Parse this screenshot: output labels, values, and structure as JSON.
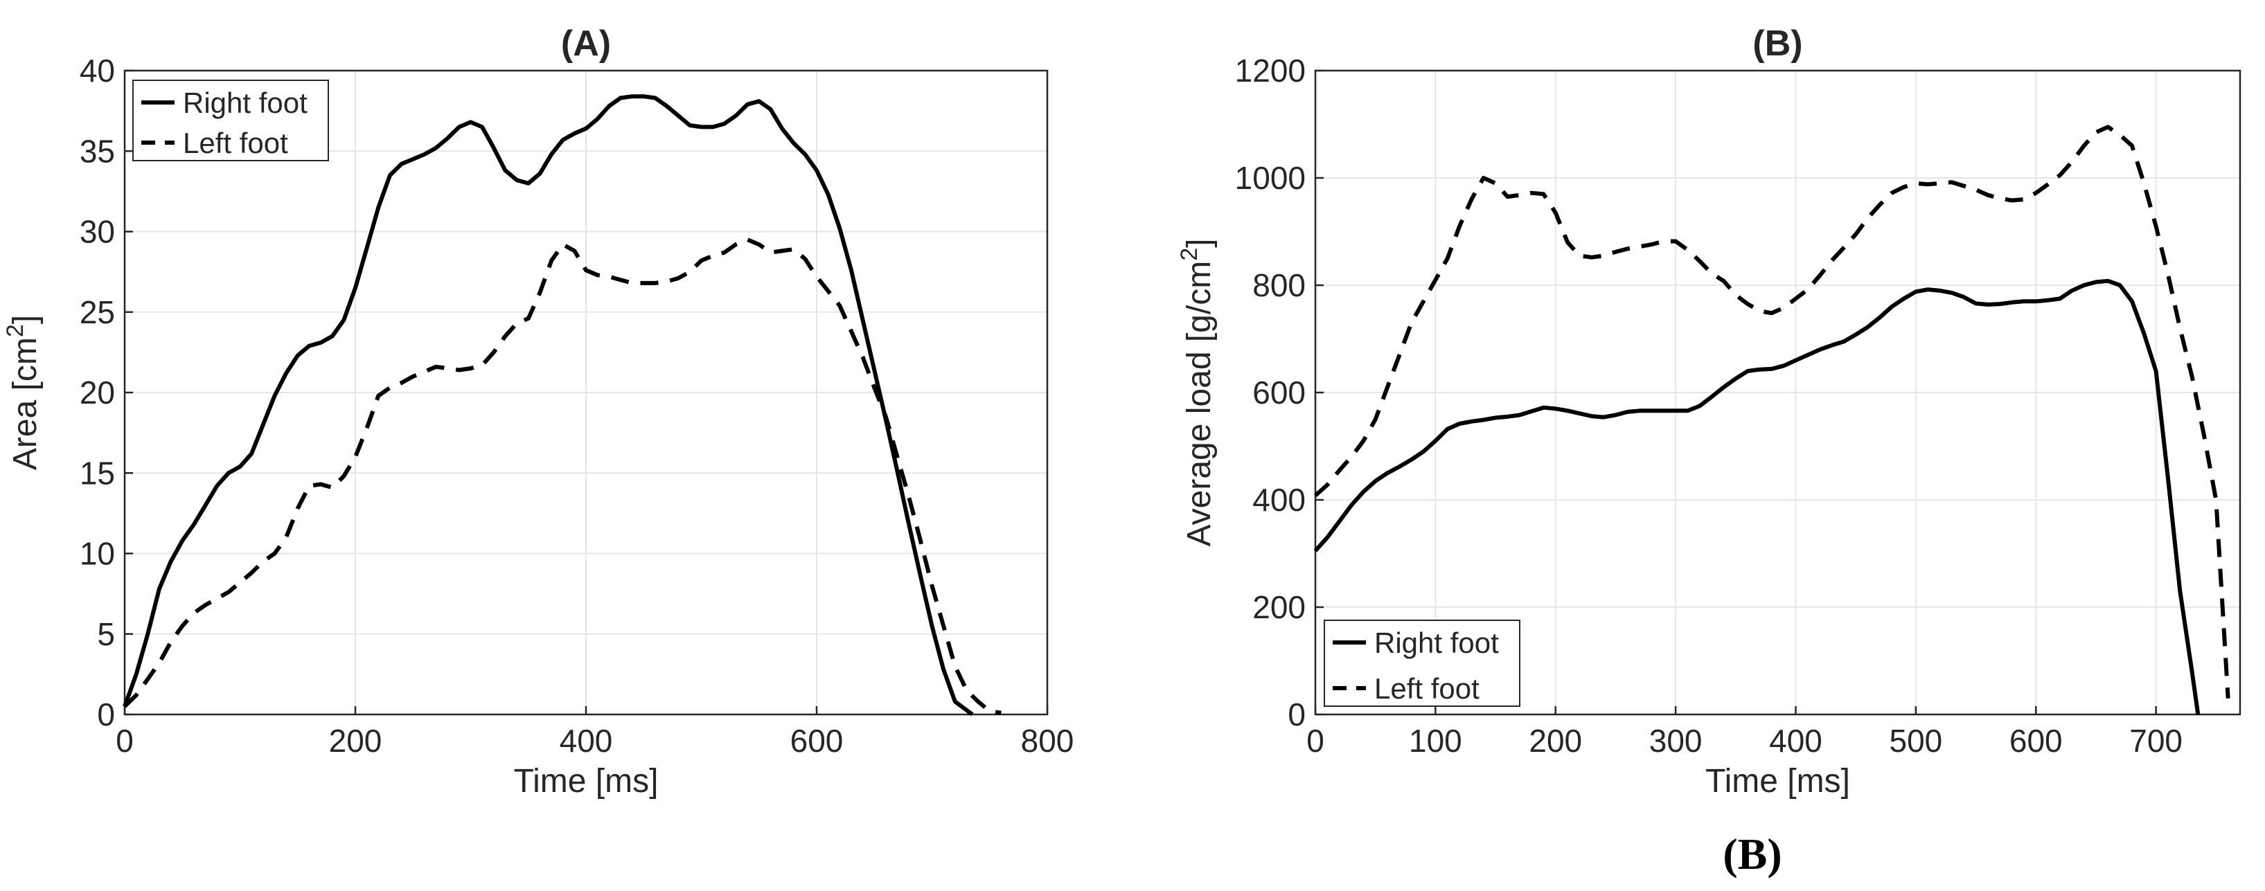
{
  "chart_data": [
    {
      "type": "line",
      "title": "(A)",
      "xlabel": "Time [ms]",
      "ylabel": "Area [cm²]",
      "xlim": [
        0,
        800
      ],
      "ylim": [
        0,
        40
      ],
      "xticks": [
        0,
        200,
        400,
        600,
        800
      ],
      "yticks": [
        0,
        5,
        10,
        15,
        20,
        25,
        30,
        35,
        40
      ],
      "grid": true,
      "legend_position": "top-left",
      "series": [
        {
          "name": "Right foot",
          "style": "solid",
          "x": [
            0,
            10,
            20,
            30,
            40,
            50,
            60,
            70,
            80,
            90,
            100,
            110,
            120,
            130,
            140,
            150,
            160,
            170,
            180,
            190,
            200,
            210,
            220,
            230,
            240,
            250,
            260,
            270,
            280,
            290,
            300,
            310,
            320,
            330,
            340,
            350,
            360,
            370,
            380,
            390,
            400,
            410,
            420,
            430,
            440,
            450,
            460,
            470,
            480,
            490,
            500,
            510,
            520,
            530,
            540,
            550,
            560,
            570,
            580,
            590,
            600,
            610,
            620,
            630,
            640,
            650,
            660,
            670,
            680,
            690,
            700,
            710,
            720,
            735
          ],
          "values": [
            0.5,
            2.5,
            5,
            7.8,
            9.5,
            10.8,
            11.8,
            13,
            14.2,
            15,
            15.4,
            16.2,
            18,
            19.8,
            21.2,
            22.3,
            22.9,
            23.1,
            23.5,
            24.5,
            26.5,
            29,
            31.5,
            33.5,
            34.2,
            34.5,
            34.8,
            35.2,
            35.8,
            36.5,
            36.8,
            36.5,
            35.2,
            33.8,
            33.2,
            33,
            33.6,
            34.8,
            35.7,
            36.1,
            36.4,
            37,
            37.8,
            38.3,
            38.4,
            38.4,
            38.3,
            37.8,
            37.2,
            36.6,
            36.5,
            36.5,
            36.7,
            37.2,
            37.9,
            38.1,
            37.6,
            36.4,
            35.5,
            34.8,
            33.8,
            32.3,
            30.2,
            27.6,
            24.5,
            21.4,
            18.3,
            15.1,
            11.8,
            8.6,
            5.5,
            2.8,
            0.8,
            0
          ]
        },
        {
          "name": "Left foot",
          "style": "dashed",
          "x": [
            0,
            10,
            20,
            30,
            40,
            50,
            60,
            70,
            80,
            90,
            100,
            110,
            120,
            130,
            140,
            150,
            160,
            170,
            180,
            190,
            200,
            210,
            220,
            230,
            240,
            250,
            260,
            270,
            280,
            290,
            300,
            310,
            320,
            330,
            340,
            350,
            360,
            370,
            380,
            390,
            400,
            410,
            420,
            430,
            440,
            450,
            460,
            470,
            480,
            490,
            500,
            510,
            520,
            530,
            540,
            550,
            560,
            570,
            580,
            590,
            600,
            610,
            620,
            630,
            640,
            650,
            660,
            670,
            680,
            690,
            700,
            710,
            720,
            730,
            740,
            750,
            760
          ],
          "values": [
            0.5,
            1.2,
            2.2,
            3.2,
            4.5,
            5.5,
            6.3,
            6.8,
            7.2,
            7.6,
            8.2,
            8.8,
            9.5,
            10,
            11,
            12.8,
            14.2,
            14.3,
            14.1,
            14.8,
            16,
            17.8,
            19.8,
            20.3,
            20.6,
            21,
            21.3,
            21.6,
            21.5,
            21.4,
            21.5,
            21.7,
            22.5,
            23.5,
            24.3,
            24.6,
            26.2,
            28.2,
            29.2,
            28.8,
            27.6,
            27.3,
            27.2,
            27,
            26.8,
            26.8,
            26.8,
            26.9,
            27.1,
            27.5,
            28.2,
            28.5,
            28.7,
            29.2,
            29.5,
            29.2,
            28.7,
            28.8,
            28.9,
            28.3,
            27.2,
            26.3,
            25.4,
            23.8,
            22.2,
            20.3,
            18.5,
            16,
            13.5,
            10.8,
            8,
            5.5,
            3,
            1.5,
            0.8,
            0.2,
            0.1
          ]
        }
      ]
    },
    {
      "type": "line",
      "title": "(B)",
      "xlabel": "Time [ms]",
      "ylabel": "Average load [g/cm²]",
      "xlim": [
        0,
        770
      ],
      "ylim": [
        0,
        1200
      ],
      "xticks": [
        0,
        100,
        200,
        300,
        400,
        500,
        600,
        700
      ],
      "yticks": [
        0,
        200,
        400,
        600,
        800,
        1000,
        1200
      ],
      "grid": true,
      "legend_position": "bottom-left",
      "series": [
        {
          "name": "Right foot",
          "style": "solid",
          "x": [
            0,
            10,
            20,
            30,
            40,
            50,
            60,
            70,
            80,
            90,
            100,
            110,
            120,
            130,
            140,
            150,
            160,
            170,
            180,
            190,
            200,
            210,
            220,
            230,
            240,
            250,
            260,
            270,
            280,
            290,
            300,
            310,
            320,
            330,
            340,
            350,
            360,
            370,
            380,
            390,
            400,
            410,
            420,
            430,
            440,
            450,
            460,
            470,
            480,
            490,
            500,
            510,
            520,
            530,
            540,
            550,
            560,
            570,
            580,
            590,
            600,
            610,
            620,
            630,
            640,
            650,
            660,
            670,
            680,
            690,
            700,
            710,
            720,
            730,
            735
          ],
          "values": [
            305,
            330,
            360,
            390,
            415,
            435,
            450,
            462,
            475,
            490,
            510,
            532,
            542,
            546,
            549,
            553,
            555,
            558,
            565,
            572,
            570,
            566,
            561,
            556,
            554,
            558,
            564,
            566,
            566,
            566,
            566,
            566,
            575,
            592,
            610,
            626,
            640,
            643,
            644,
            650,
            660,
            670,
            680,
            688,
            695,
            708,
            722,
            740,
            760,
            775,
            788,
            792,
            790,
            786,
            778,
            766,
            764,
            765,
            768,
            770,
            770,
            772,
            775,
            790,
            800,
            806,
            808,
            800,
            770,
            710,
            640,
            440,
            230,
            80,
            0
          ]
        },
        {
          "name": "Left foot",
          "style": "dashed",
          "x": [
            0,
            10,
            20,
            30,
            40,
            50,
            60,
            70,
            80,
            90,
            100,
            110,
            120,
            130,
            140,
            150,
            160,
            170,
            180,
            190,
            200,
            210,
            220,
            230,
            240,
            250,
            260,
            270,
            280,
            290,
            300,
            310,
            320,
            330,
            340,
            350,
            360,
            370,
            380,
            390,
            400,
            410,
            420,
            430,
            440,
            450,
            460,
            470,
            480,
            490,
            500,
            510,
            520,
            530,
            540,
            550,
            560,
            570,
            580,
            590,
            600,
            610,
            620,
            630,
            640,
            650,
            660,
            670,
            680,
            690,
            700,
            710,
            720,
            730,
            740,
            750,
            760
          ],
          "values": [
            408,
            428,
            455,
            480,
            510,
            550,
            610,
            670,
            730,
            770,
            810,
            850,
            910,
            960,
            1000,
            990,
            965,
            968,
            972,
            970,
            935,
            880,
            855,
            852,
            855,
            862,
            868,
            872,
            876,
            882,
            882,
            866,
            845,
            822,
            808,
            782,
            765,
            752,
            748,
            758,
            775,
            792,
            818,
            846,
            870,
            895,
            925,
            950,
            972,
            983,
            990,
            988,
            990,
            992,
            985,
            978,
            968,
            962,
            958,
            960,
            972,
            988,
            1005,
            1030,
            1060,
            1085,
            1095,
            1080,
            1060,
            990,
            910,
            820,
            720,
            630,
            520,
            400,
            30
          ]
        }
      ]
    }
  ],
  "caption": "(B)"
}
